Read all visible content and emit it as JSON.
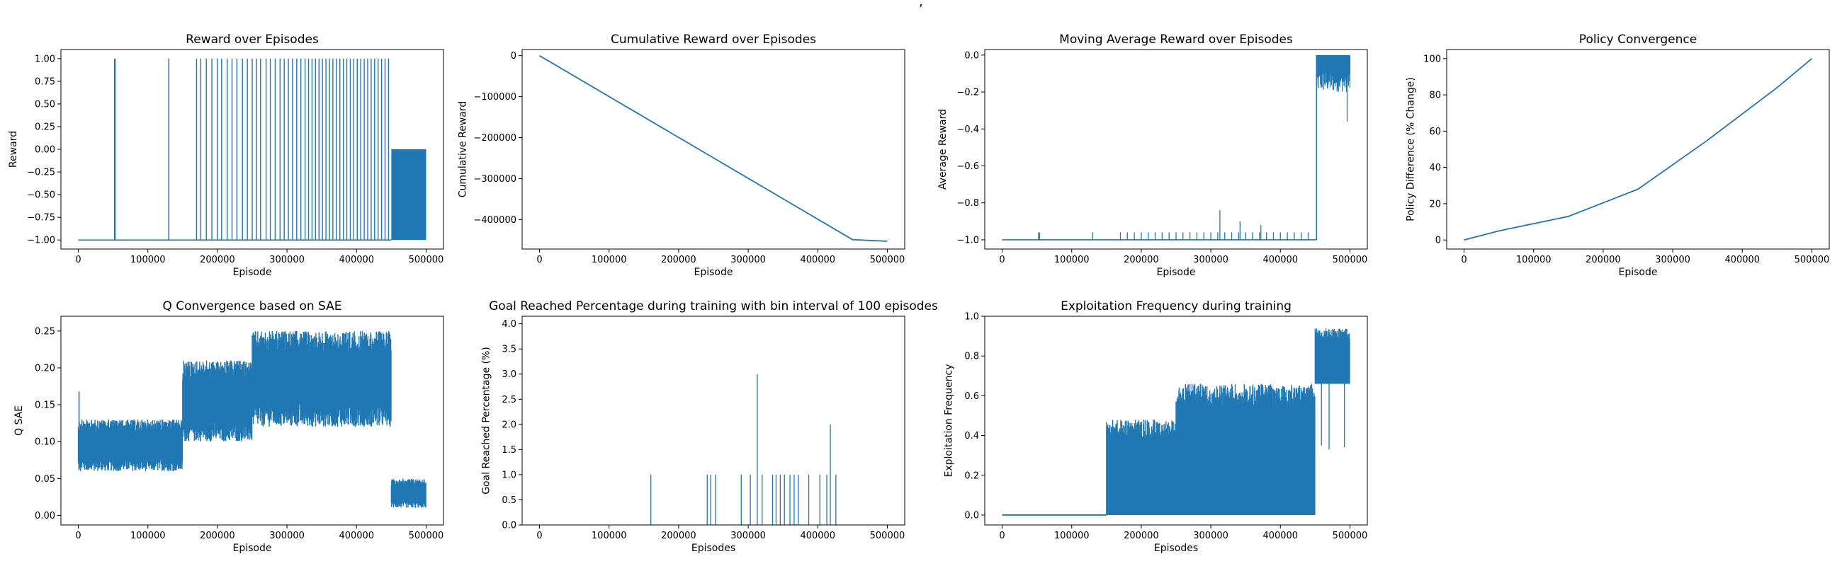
{
  "figure": {
    "suptitle_fragment": ","
  },
  "chart_data": [
    {
      "id": "reward",
      "type": "line",
      "title": "Reward over Episodes",
      "xlabel": "Episode",
      "ylabel": "Reward",
      "xlim": [
        -25000,
        525000
      ],
      "ylim": [
        -1.1,
        1.1
      ],
      "xticks": [
        0,
        100000,
        200000,
        300000,
        400000,
        500000
      ],
      "yticks": [
        -1.0,
        -0.75,
        -0.5,
        -0.25,
        0.0,
        0.25,
        0.5,
        0.75,
        1.0
      ],
      "ytick_labels": [
        "−1.00",
        "−0.75",
        "−0.50",
        "−0.25",
        "0.00",
        "0.25",
        "0.50",
        "0.75",
        "1.00"
      ],
      "series": [
        {
          "baseline": -1.0,
          "spike_to": 1.0,
          "spikes_at": [
            52000,
            53000,
            130000,
            170000,
            176000,
            184000,
            192000,
            200000,
            206000,
            214000,
            221000,
            228000,
            236000,
            243000,
            250000,
            256000,
            262000,
            270000,
            276000,
            283000,
            290000,
            296000,
            302000,
            308000,
            314000,
            320000,
            326000,
            331000,
            336000,
            341000,
            346000,
            351000,
            356000,
            361000,
            366000,
            371000,
            376000,
            381000,
            386000,
            391000,
            396000,
            401000,
            406000,
            411000,
            416000,
            421000,
            426000,
            431000,
            436000,
            441000,
            446000
          ],
          "dense_range": [
            450000,
            500000
          ],
          "dense_min": -1.0,
          "dense_max": 0.0
        }
      ]
    },
    {
      "id": "cumulative",
      "type": "line",
      "title": "Cumulative Reward over Episodes",
      "xlabel": "Episode",
      "ylabel": "Cumulative Reward",
      "xlim": [
        -25000,
        525000
      ],
      "ylim": [
        -472000,
        15000
      ],
      "xticks": [
        0,
        100000,
        200000,
        300000,
        400000,
        500000
      ],
      "yticks": [
        0,
        -100000,
        -200000,
        -300000,
        -400000
      ],
      "ytick_labels": [
        "0",
        "−100000",
        "−200000",
        "−300000",
        "−400000"
      ],
      "series": [
        {
          "x": [
            0,
            450000,
            500000
          ],
          "y": [
            0,
            -449000,
            -453000
          ]
        }
      ]
    },
    {
      "id": "moving_average",
      "type": "line",
      "title": "Moving Average Reward over Episodes",
      "xlabel": "Episode",
      "ylabel": "Average Reward",
      "xlim": [
        -25000,
        525000
      ],
      "ylim": [
        -1.05,
        0.03
      ],
      "xticks": [
        0,
        100000,
        200000,
        300000,
        400000,
        500000
      ],
      "yticks": [
        0.0,
        -0.2,
        -0.4,
        -0.6,
        -0.8,
        -1.0
      ],
      "ytick_labels": [
        "0.0",
        "−0.2",
        "−0.4",
        "−0.6",
        "−0.8",
        "−1.0"
      ],
      "series": [
        {
          "baseline": -1.0,
          "spikes_at": [
            52000,
            54000,
            130000,
            170000,
            180000,
            190000,
            200000,
            210000,
            220000,
            230000,
            240000,
            250000,
            260000,
            270000,
            280000,
            290000,
            300000,
            310000,
            320000,
            330000,
            340000,
            350000,
            360000,
            370000,
            380000,
            390000,
            400000,
            410000,
            420000,
            430000,
            440000
          ],
          "spike_to": -0.96,
          "special_spikes": [
            [
              313000,
              -0.84
            ],
            [
              342000,
              -0.9
            ],
            [
              372000,
              -0.92
            ]
          ],
          "dense_range": [
            452000,
            500000
          ],
          "dense_min": -0.2,
          "dense_max": 0.0,
          "dense_low_spike": -0.36
        }
      ]
    },
    {
      "id": "policy",
      "type": "line",
      "title": "Policy Convergence",
      "xlabel": "Episode",
      "ylabel": "Policy Difference (% Change)",
      "xlim": [
        -25000,
        525000
      ],
      "ylim": [
        -5,
        105
      ],
      "xticks": [
        0,
        100000,
        200000,
        300000,
        400000,
        500000
      ],
      "yticks": [
        0,
        20,
        40,
        60,
        80,
        100
      ],
      "ytick_labels": [
        "0",
        "20",
        "40",
        "60",
        "80",
        "100"
      ],
      "series": [
        {
          "x": [
            0,
            50000,
            150000,
            250000,
            350000,
            450000,
            500000
          ],
          "y": [
            0,
            5,
            13,
            28,
            55,
            84,
            100
          ]
        }
      ]
    },
    {
      "id": "q_sae",
      "type": "line",
      "title": "Q Convergence based on SAE",
      "xlabel": "Episode",
      "ylabel": "Q SAE",
      "xlim": [
        -25000,
        525000
      ],
      "ylim": [
        -0.013,
        0.27
      ],
      "xticks": [
        0,
        100000,
        200000,
        300000,
        400000,
        500000
      ],
      "yticks": [
        0.0,
        0.05,
        0.1,
        0.15,
        0.2,
        0.25
      ],
      "ytick_labels": [
        "0.00",
        "0.05",
        "0.10",
        "0.15",
        "0.20",
        "0.25"
      ],
      "series": [
        {
          "bands": [
            {
              "range": [
                0,
                150000
              ],
              "min": 0.06,
              "max": 0.13
            },
            {
              "range": [
                150000,
                250000
              ],
              "min": 0.1,
              "max": 0.21
            },
            {
              "range": [
                250000,
                450000
              ],
              "min": 0.12,
              "max": 0.25
            },
            {
              "range": [
                450000,
                500000
              ],
              "min": 0.01,
              "max": 0.05
            }
          ],
          "start_spike": [
            0,
            0.168
          ]
        }
      ]
    },
    {
      "id": "goal_reached",
      "type": "bar",
      "title": "Goal Reached Percentage during training with bin interval of 100 episodes",
      "xlabel": "Episodes",
      "ylabel": "Goal Reached Percentage (%)",
      "xlim": [
        -25000,
        525000
      ],
      "ylim": [
        0,
        4.15
      ],
      "xticks": [
        0,
        100000,
        200000,
        300000,
        400000,
        500000
      ],
      "yticks": [
        0.0,
        0.5,
        1.0,
        1.5,
        2.0,
        2.5,
        3.0,
        3.5,
        4.0
      ],
      "ytick_labels": [
        "0.0",
        "0.5",
        "1.0",
        "1.5",
        "2.0",
        "2.5",
        "3.0",
        "3.5",
        "4.0"
      ],
      "series": [
        {
          "x": [
            160000,
            241000,
            246000,
            253000,
            290000,
            303000,
            313000,
            320000,
            335000,
            340000,
            346000,
            352000,
            360000,
            366000,
            372000,
            387000,
            403000,
            413000,
            418000,
            426000
          ],
          "y": [
            1,
            1,
            1,
            1,
            1,
            1,
            3,
            1,
            1,
            1,
            1,
            1,
            1,
            1,
            1,
            1,
            1,
            1,
            2,
            1
          ]
        }
      ]
    },
    {
      "id": "exploitation",
      "type": "line",
      "title": "Exploitation Frequency during training",
      "xlabel": "Episodes",
      "ylabel": "Exploitation Frequency",
      "xlim": [
        -25000,
        525000
      ],
      "ylim": [
        -0.05,
        1.0
      ],
      "xticks": [
        0,
        100000,
        200000,
        300000,
        400000,
        500000
      ],
      "yticks": [
        0.0,
        0.2,
        0.4,
        0.6,
        0.8,
        1.0
      ],
      "ytick_labels": [
        "0.0",
        "0.2",
        "0.4",
        "0.6",
        "0.8",
        "1.0"
      ],
      "series": [
        {
          "flat": [
            [
              0,
              150000,
              0.0
            ]
          ],
          "bands": [
            {
              "range": [
                150000,
                250000
              ],
              "min": 0.0,
              "max": 0.48
            },
            {
              "range": [
                250000,
                450000
              ],
              "min": 0.0,
              "max": 0.66
            },
            {
              "range": [
                450000,
                500000
              ],
              "min": 0.66,
              "max": 0.94
            }
          ],
          "low_spikes": [
            [
              459000,
              0.35
            ],
            [
              470000,
              0.33
            ],
            [
              492000,
              0.34
            ]
          ]
        }
      ]
    }
  ]
}
